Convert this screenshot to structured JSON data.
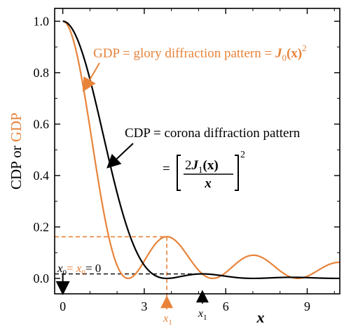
{
  "chart_data": {
    "type": "line",
    "ylabel_prefix": "CDP or ",
    "ylabel_gdp": "GDP",
    "xlabel": "x",
    "xlim": [
      -0.3,
      10.2
    ],
    "ylim": [
      -0.06,
      1.05
    ],
    "xticks": [
      0,
      3,
      6,
      9
    ],
    "yticks": [
      0.0,
      0.2,
      0.4,
      0.6,
      0.8,
      1.0
    ],
    "ytick_labels": [
      "0.0",
      "0.2",
      "0.4",
      "0.6",
      "0.8",
      "1.0"
    ],
    "colors": {
      "cdp": "#000000",
      "gdp": "#e8833a"
    },
    "series": [
      {
        "key": "cdp",
        "formula": "[2 J1(x)/x]^2",
        "color": "#000000"
      },
      {
        "key": "gdp",
        "formula": "J0(x)^2",
        "color": "#e8833a"
      }
    ],
    "annotations": {
      "gdp_label": {
        "text": "GDP = glory diffraction pattern = ",
        "formula_main": "J",
        "formula_sub": "0",
        "formula_arg": "(x)",
        "formula_exp": "2"
      },
      "cdp_label": {
        "text": "CDP = corona diffraction  pattern",
        "eq": "=",
        "num": "2J",
        "num_sub": "1",
        "num_arg": "(x)",
        "den": "x",
        "exp": "2"
      },
      "x0_label": {
        "part1": "x",
        "part1_sub": "0",
        "eq1": "= ",
        "part2": "x",
        "part2_sub": "0",
        "eq2": "= 0"
      },
      "gdp_max": {
        "x": 3.83,
        "y": 0.162,
        "label": "x",
        "sub": "1"
      },
      "cdp_max": {
        "x": 5.14,
        "y": 0.0175,
        "label": "x",
        "sub": "1"
      },
      "cdp_dashed_y": 0.0175
    }
  }
}
